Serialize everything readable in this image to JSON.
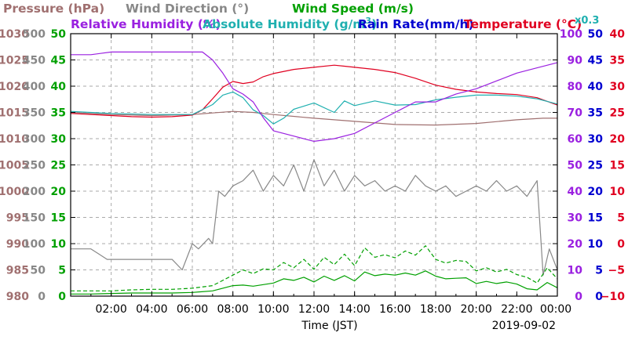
{
  "chart_data": {
    "type": "line",
    "date_label": "2019-09-02",
    "xlabel": "Time (JST)",
    "x_ticks": [
      "02:00",
      "04:00",
      "06:00",
      "08:00",
      "10:00",
      "12:00",
      "14:00",
      "16:00",
      "18:00",
      "20:00",
      "22:00",
      "00:00"
    ],
    "x_range_hours": [
      0,
      24
    ],
    "grid": true,
    "legend": [
      {
        "key": "pressure",
        "text": "Pressure (hPa)",
        "color": "#a07070"
      },
      {
        "key": "wdir",
        "text": "Wind Direction (°)",
        "color": "#888888"
      },
      {
        "key": "wspd",
        "text": "Wind Speed (m/s)",
        "color": "#00a000"
      },
      {
        "key": "rh",
        "text": "Relative Humidity (%)",
        "color": "#9a20e0"
      },
      {
        "key": "ah",
        "text": "Absolute Humidity (g/m",
        "sup": "3",
        "tail": ")",
        "color": "#20b0b0"
      },
      {
        "key": "ah_factor",
        "text": "x0.3",
        "color": "#20b0b0"
      },
      {
        "key": "rain",
        "text": "Rain Rate(mm/h)",
        "color": "#0000d0"
      },
      {
        "key": "temp",
        "text": "Temperature (°C)",
        "color": "#e00020"
      }
    ],
    "axes": {
      "pressure": {
        "range": [
          980,
          1030
        ],
        "ticks": [
          "980",
          "985",
          "990",
          "995",
          "1000",
          "1005",
          "1010",
          "1015",
          "1020",
          "1025",
          "1030"
        ],
        "color": "#a07070"
      },
      "wdir": {
        "range": [
          0,
          500
        ],
        "ticks": [
          "0",
          "50",
          "100",
          "150",
          "200",
          "250",
          "300",
          "350",
          "400",
          "450",
          "500"
        ],
        "color": "#888888"
      },
      "wspd": {
        "range": [
          0,
          50
        ],
        "ticks": [
          "0",
          "5",
          "10",
          "15",
          "20",
          "25",
          "30",
          "35",
          "40",
          "45",
          "50"
        ],
        "color": "#00a000"
      },
      "rh": {
        "range": [
          0,
          100
        ],
        "ticks": [
          "0",
          "10",
          "20",
          "30",
          "40",
          "50",
          "60",
          "70",
          "80",
          "90",
          "100"
        ],
        "color": "#9a20e0"
      },
      "rain": {
        "range": [
          0,
          50
        ],
        "ticks": [
          "0",
          "5",
          "10",
          "15",
          "20",
          "25",
          "30",
          "35",
          "40",
          "45",
          "50"
        ],
        "color": "#0000d0"
      },
      "temp": {
        "range": [
          -10,
          40
        ],
        "ticks": [
          "−10",
          "−5",
          "0",
          "5",
          "10",
          "15",
          "20",
          "25",
          "30",
          "35",
          "40"
        ],
        "color": "#e00020"
      }
    },
    "series": [
      {
        "name": "Pressure (hPa)",
        "key": "pressure",
        "color": "#a07070",
        "x": [
          0,
          2,
          4,
          6,
          7,
          8,
          9,
          10,
          12,
          14,
          16,
          18,
          20,
          22,
          23.3,
          24
        ],
        "y": [
          1015.0,
          1014.6,
          1014.4,
          1014.6,
          1014.9,
          1015.2,
          1015.0,
          1014.6,
          1013.9,
          1013.3,
          1012.7,
          1012.6,
          1012.9,
          1013.6,
          1013.9,
          1013.9
        ]
      },
      {
        "name": "Temperature (°C)",
        "key": "temp",
        "color": "#e00020",
        "x": [
          0,
          1,
          2,
          3,
          4,
          5,
          6,
          6.5,
          7,
          7.5,
          8,
          8.5,
          9,
          9.5,
          10,
          11,
          12,
          13,
          13.5,
          14,
          15,
          16,
          17,
          18,
          19,
          20,
          21,
          22,
          23,
          24
        ],
        "y": [
          24.8,
          24.6,
          24.4,
          24.2,
          24.1,
          24.2,
          24.5,
          25.5,
          27.6,
          29.8,
          30.9,
          30.5,
          30.8,
          31.8,
          32.4,
          33.2,
          33.6,
          34.0,
          33.8,
          33.6,
          33.2,
          32.6,
          31.5,
          30.2,
          29.4,
          28.9,
          28.6,
          28.4,
          27.8,
          26.4
        ]
      },
      {
        "name": "Absolute Humidity x0.3",
        "key": "ah",
        "color": "#20b0b0",
        "scale": "temp",
        "x": [
          0,
          2,
          4,
          6,
          7,
          7.5,
          8,
          8.5,
          9,
          9.5,
          10,
          10.5,
          11,
          12,
          13,
          13.5,
          14,
          15,
          16,
          17,
          18,
          19,
          20,
          21,
          22,
          23,
          24
        ],
        "y": [
          25.2,
          24.8,
          24.6,
          24.6,
          26.5,
          28.3,
          28.9,
          27.8,
          25.5,
          24.4,
          22.8,
          23.9,
          25.6,
          26.8,
          25.0,
          27.2,
          26.3,
          27.2,
          26.4,
          26.5,
          27.4,
          27.9,
          28.3,
          28.3,
          28.1,
          27.6,
          26.6
        ]
      },
      {
        "name": "Relative Humidity (%)",
        "key": "rh",
        "color": "#9a20e0",
        "x": [
          0,
          1,
          2,
          3,
          4,
          5,
          6,
          6.5,
          7,
          7.5,
          8,
          8.5,
          9,
          9.5,
          10,
          11,
          12,
          13,
          14,
          15,
          16,
          17,
          18,
          19,
          20,
          21,
          22,
          23,
          24
        ],
        "y": [
          92,
          92,
          93,
          93,
          93,
          93,
          93,
          93,
          90,
          85,
          79,
          77,
          74,
          68,
          63,
          61,
          59,
          60,
          62,
          66,
          70,
          74,
          74,
          77,
          79,
          82,
          85,
          87,
          89
        ]
      },
      {
        "name": "Wind Direction (°)",
        "key": "wdir",
        "color": "#888888",
        "x": [
          0,
          1,
          1.8,
          2.2,
          3,
          4,
          5,
          5.5,
          6,
          6.3,
          6.8,
          7,
          7.3,
          7.6,
          8,
          8.5,
          9,
          9.5,
          10,
          10.5,
          11,
          11.5,
          12,
          12.5,
          13,
          13.5,
          14,
          14.5,
          15,
          15.5,
          16,
          16.5,
          17,
          17.5,
          18,
          18.5,
          19,
          19.5,
          20,
          20.5,
          21,
          21.5,
          22,
          22.5,
          23,
          23.3,
          23.6,
          24
        ],
        "y": [
          90,
          90,
          70,
          70,
          70,
          70,
          70,
          50,
          100,
          90,
          110,
          100,
          200,
          190,
          210,
          220,
          240,
          200,
          230,
          210,
          250,
          200,
          260,
          210,
          240,
          200,
          230,
          210,
          220,
          200,
          210,
          200,
          230,
          210,
          200,
          210,
          190,
          200,
          210,
          200,
          220,
          200,
          210,
          190,
          220,
          40,
          90,
          50
        ]
      },
      {
        "name": "Wind Speed (m/s)",
        "key": "wspd",
        "color": "#00a000",
        "x": [
          0,
          1,
          2,
          3,
          4,
          5,
          6,
          7,
          7.5,
          8,
          8.5,
          9,
          9.5,
          10,
          10.5,
          11,
          11.5,
          12,
          12.5,
          13,
          13.5,
          14,
          14.5,
          15,
          15.5,
          16,
          16.5,
          17,
          17.5,
          18,
          18.5,
          19,
          19.5,
          20,
          20.5,
          21,
          21.5,
          22,
          22.5,
          23,
          23.5,
          24
        ],
        "y": [
          0.4,
          0.4,
          0.5,
          0.6,
          0.6,
          0.6,
          0.7,
          1.0,
          1.5,
          2.0,
          2.1,
          1.9,
          2.2,
          2.5,
          3.3,
          3.0,
          3.6,
          2.7,
          3.8,
          3.0,
          3.9,
          2.9,
          4.6,
          3.9,
          4.2,
          4.0,
          4.4,
          4.0,
          4.8,
          3.8,
          3.3,
          3.4,
          3.5,
          2.4,
          2.8,
          2.4,
          2.7,
          2.3,
          1.4,
          1.2,
          2.6,
          1.6
        ]
      },
      {
        "name": "Wind Speed gust (m/s)",
        "key": "wspd",
        "color": "#00a000",
        "dashed": true,
        "x": [
          0,
          1,
          2,
          3,
          4,
          5,
          6,
          7,
          7.5,
          8,
          8.5,
          9,
          9.5,
          10,
          10.5,
          11,
          11.5,
          12,
          12.5,
          13,
          13.5,
          14,
          14.5,
          15,
          15.5,
          16,
          16.5,
          17,
          17.5,
          18,
          18.5,
          19,
          19.5,
          20,
          20.5,
          21,
          21.5,
          22,
          22.5,
          23,
          23.5,
          24
        ],
        "y": [
          1.0,
          1.0,
          1.0,
          1.2,
          1.3,
          1.3,
          1.5,
          2.0,
          3.0,
          4.0,
          5.0,
          4.3,
          5.2,
          5.0,
          6.4,
          5.4,
          7.0,
          5.1,
          7.4,
          6.0,
          8.0,
          5.8,
          9.2,
          7.4,
          7.9,
          7.3,
          8.6,
          7.8,
          9.6,
          7.0,
          6.3,
          6.8,
          6.6,
          4.8,
          5.4,
          4.6,
          5.1,
          4.1,
          3.6,
          2.5,
          5.4,
          3.3
        ]
      }
    ]
  }
}
